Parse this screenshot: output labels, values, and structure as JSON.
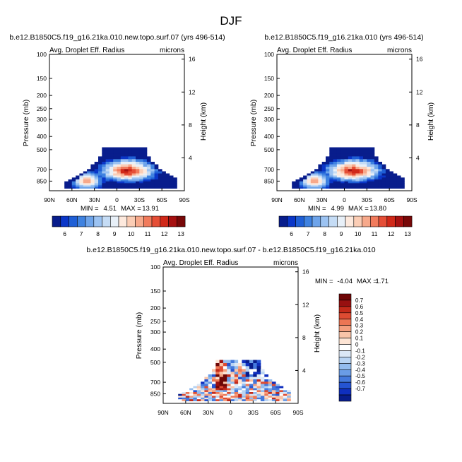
{
  "figure": {
    "title": "DJF"
  },
  "colors": {
    "frame": "#000000",
    "mean_scale": [
      "#081d8c",
      "#0a36c8",
      "#1f5fd6",
      "#3f82e0",
      "#6ea4ea",
      "#9cc3f2",
      "#c5dcf5",
      "#e8f0f8",
      "#fde9dd",
      "#fbcdb5",
      "#f7a98b",
      "#f17b5c",
      "#e54e36",
      "#d02818",
      "#a61010",
      "#780808"
    ],
    "diff_scale": [
      "#081d8c",
      "#0f2fbf",
      "#2554d2",
      "#4479dc",
      "#6a9ce6",
      "#93bcee",
      "#b8d4f3",
      "#dbe8f6",
      "#ffffff",
      "#fde4d4",
      "#f9c4a8",
      "#f49f7e",
      "#ec7654",
      "#dd4b32",
      "#c32a1a",
      "#981010",
      "#6e0606"
    ]
  },
  "chart_data": [
    {
      "type": "heatmap",
      "title": "b.e12.B1850C5.f19_g16.21ka.010.new.topo.surf.07 (yrs 496-514)",
      "left_label": "Avg. Droplet Eff. Radius",
      "right_label": "microns",
      "ylabel": "Pressure (mb)",
      "y2label": "Height (km)",
      "x_ticks": [
        "90N",
        "60N",
        "30N",
        "0",
        "30S",
        "60S",
        "90S"
      ],
      "y_ticks": [
        "100",
        "150",
        "200",
        "250",
        "300",
        "400",
        "500",
        "700",
        "850"
      ],
      "y2_ticks": [
        "16",
        "12",
        "8",
        "4"
      ],
      "stats": {
        "min_label": "MIN =",
        "min": "4.51",
        "max_label": "MAX =",
        "max": "13.91"
      },
      "colorbar_labels": [
        "6",
        "7",
        "8",
        "9",
        "10",
        "11",
        "12",
        "13"
      ],
      "xlim": [
        -90,
        90
      ],
      "ylim": [
        100,
        1000
      ],
      "peak": [
        15,
        720
      ]
    },
    {
      "type": "heatmap",
      "title": "b.e12.B1850C5.f19_g16.21ka.010 (yrs 496-514)",
      "left_label": "Avg. Droplet Eff. Radius",
      "right_label": "microns",
      "ylabel": "Pressure (mb)",
      "y2label": "Height (km)",
      "x_ticks": [
        "90N",
        "60N",
        "30N",
        "0",
        "30S",
        "60S",
        "90S"
      ],
      "y_ticks": [
        "100",
        "150",
        "200",
        "250",
        "300",
        "400",
        "500",
        "700",
        "850"
      ],
      "y2_ticks": [
        "16",
        "12",
        "8",
        "4"
      ],
      "stats": {
        "min_label": "MIN =",
        "min": "4.99",
        "max_label": "MAX =",
        "max": "13.80"
      },
      "colorbar_labels": [
        "6",
        "7",
        "8",
        "9",
        "10",
        "11",
        "12",
        "13"
      ],
      "xlim": [
        -90,
        90
      ],
      "ylim": [
        100,
        1000
      ],
      "peak": [
        12,
        720
      ]
    },
    {
      "type": "heatmap",
      "title": "b.e12.B1850C5.f19_g16.21ka.010.new.topo.surf.07 - b.e12.B1850C5.f19_g16.21ka.010",
      "left_label": "Avg. Droplet Eff. Radius",
      "right_label": "microns",
      "ylabel": "Pressure (mb)",
      "y2label": "Height (km)",
      "x_ticks": [
        "90N",
        "60N",
        "30N",
        "0",
        "30S",
        "60S",
        "90S"
      ],
      "y_ticks": [
        "100",
        "150",
        "200",
        "250",
        "300",
        "400",
        "500",
        "700",
        "850"
      ],
      "y2_ticks": [
        "16",
        "12",
        "8",
        "4"
      ],
      "stats": {
        "min_label": "MIN =",
        "min": "-4.04",
        "max_label": "MAX =",
        "max": "1.71"
      },
      "colorbar_labels": [
        "0.7",
        "0.6",
        "0.5",
        "0.4",
        "0.3",
        "0.2",
        "0.1",
        "0",
        "-0.1",
        "-0.2",
        "-0.3",
        "-0.4",
        "-0.5",
        "-0.6",
        "-0.7"
      ],
      "xlim": [
        -90,
        90
      ],
      "ylim": [
        100,
        1000
      ]
    }
  ]
}
